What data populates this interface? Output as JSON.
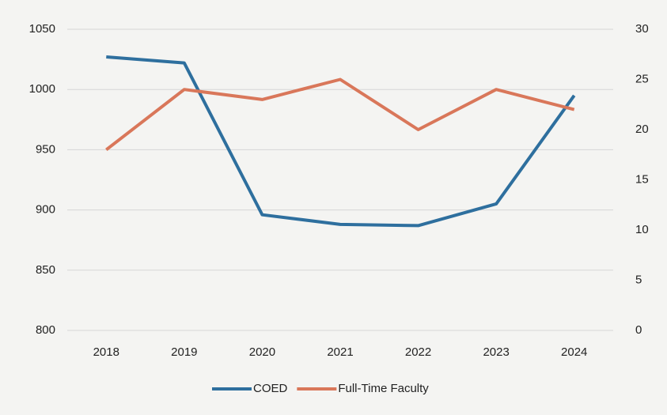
{
  "chart_data": {
    "type": "line",
    "x": [
      "2018",
      "2019",
      "2020",
      "2021",
      "2022",
      "2023",
      "2024"
    ],
    "series": [
      {
        "name": "COED",
        "color": "#2e6f9e",
        "values": [
          1027,
          1022,
          896,
          888,
          887,
          905,
          995
        ]
      },
      {
        "name": "Full-Time Faculty",
        "color": "#d9775a",
        "axis": "y2",
        "values": [
          18,
          24,
          23,
          25,
          20,
          24,
          22
        ]
      }
    ],
    "ylim": [
      800,
      1050
    ],
    "yticks": [
      800,
      850,
      900,
      950,
      1000,
      1050
    ],
    "y2lim": [
      0,
      30
    ],
    "y2ticks": [
      0,
      5,
      10,
      15,
      20,
      25,
      30
    ],
    "grid": true,
    "legend": "bottom"
  }
}
